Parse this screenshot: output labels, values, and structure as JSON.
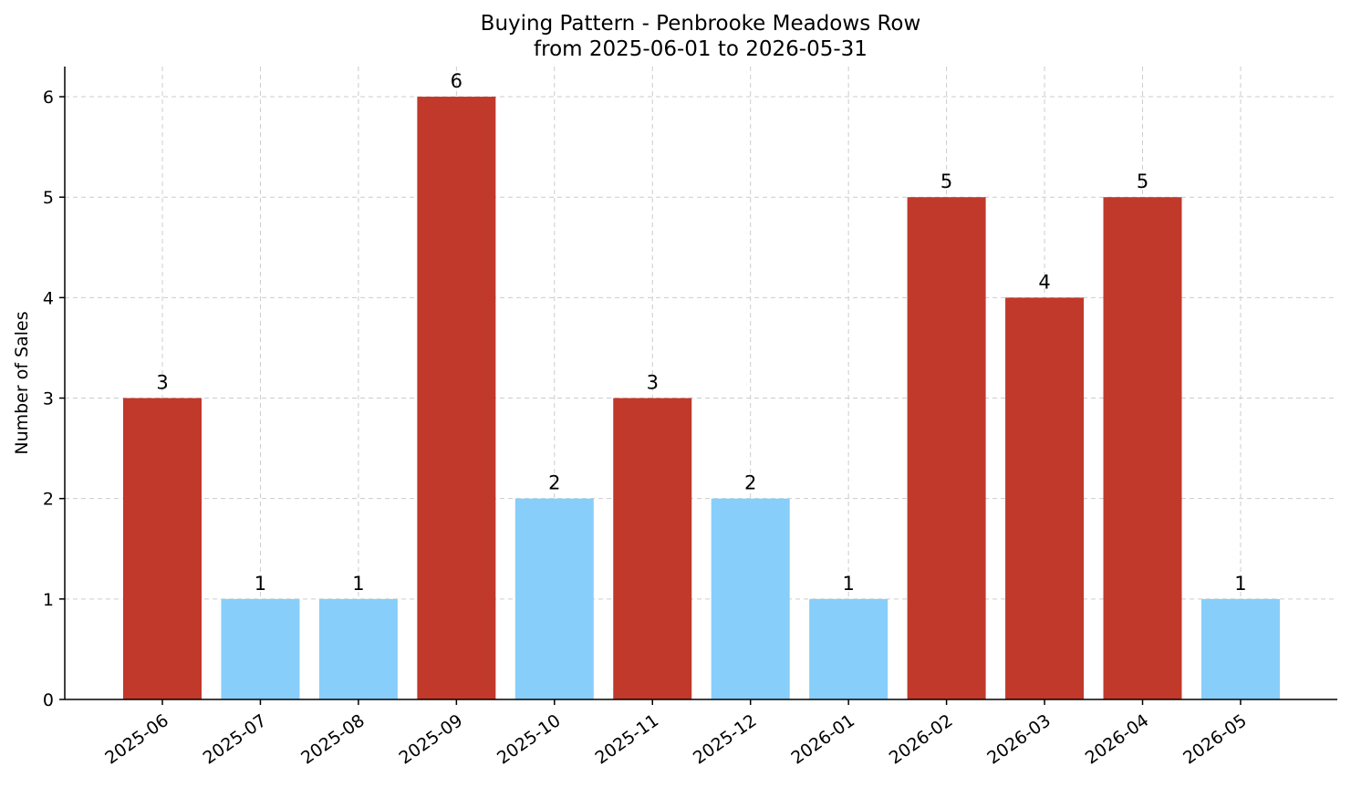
{
  "chart_data": {
    "type": "bar",
    "title": "Buying Pattern - Penbrooke Meadows Row",
    "subtitle": "from 2025-06-01 to 2026-05-31",
    "xlabel": "",
    "ylabel": "Number of Sales",
    "categories": [
      "2025-06",
      "2025-07",
      "2025-08",
      "2025-09",
      "2025-10",
      "2025-11",
      "2025-12",
      "2026-01",
      "2026-02",
      "2026-03",
      "2026-04",
      "2026-05"
    ],
    "values": [
      3,
      1,
      1,
      6,
      2,
      3,
      2,
      1,
      5,
      4,
      5,
      1
    ],
    "bar_colors": [
      "#c0392b",
      "#87cefa",
      "#87cefa",
      "#c0392b",
      "#87cefa",
      "#c0392b",
      "#87cefa",
      "#87cefa",
      "#c0392b",
      "#c0392b",
      "#c0392b",
      "#87cefa"
    ],
    "ylim": [
      0,
      6.3
    ],
    "yticks": [
      0,
      1,
      2,
      3,
      4,
      5,
      6
    ],
    "grid": true,
    "legend": "none"
  }
}
